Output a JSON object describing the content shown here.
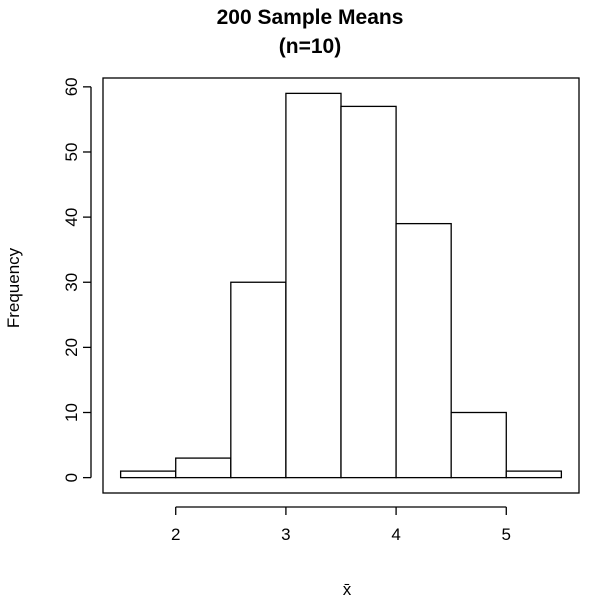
{
  "chart_data": {
    "type": "bar",
    "title_line1": "200 Sample Means",
    "title_line2": "(n=10)",
    "xlabel": "x̄",
    "ylabel": "Frequency",
    "bins": [
      {
        "start": 1.5,
        "end": 2.0,
        "count": 1
      },
      {
        "start": 2.0,
        "end": 2.5,
        "count": 3
      },
      {
        "start": 2.5,
        "end": 3.0,
        "count": 30
      },
      {
        "start": 3.0,
        "end": 3.5,
        "count": 59
      },
      {
        "start": 3.5,
        "end": 4.0,
        "count": 57
      },
      {
        "start": 4.0,
        "end": 4.5,
        "count": 39
      },
      {
        "start": 4.5,
        "end": 5.0,
        "count": 10
      },
      {
        "start": 5.0,
        "end": 5.5,
        "count": 1
      }
    ],
    "x_ticks": [
      2,
      3,
      4,
      5
    ],
    "y_ticks": [
      0,
      10,
      20,
      30,
      40,
      50,
      60
    ],
    "xlim": [
      1.34,
      5.66
    ],
    "ylim": [
      -2.36,
      61.36
    ],
    "grid": false,
    "colors": {
      "bar_fill": "#ffffff",
      "bar_stroke": "#000000"
    }
  }
}
